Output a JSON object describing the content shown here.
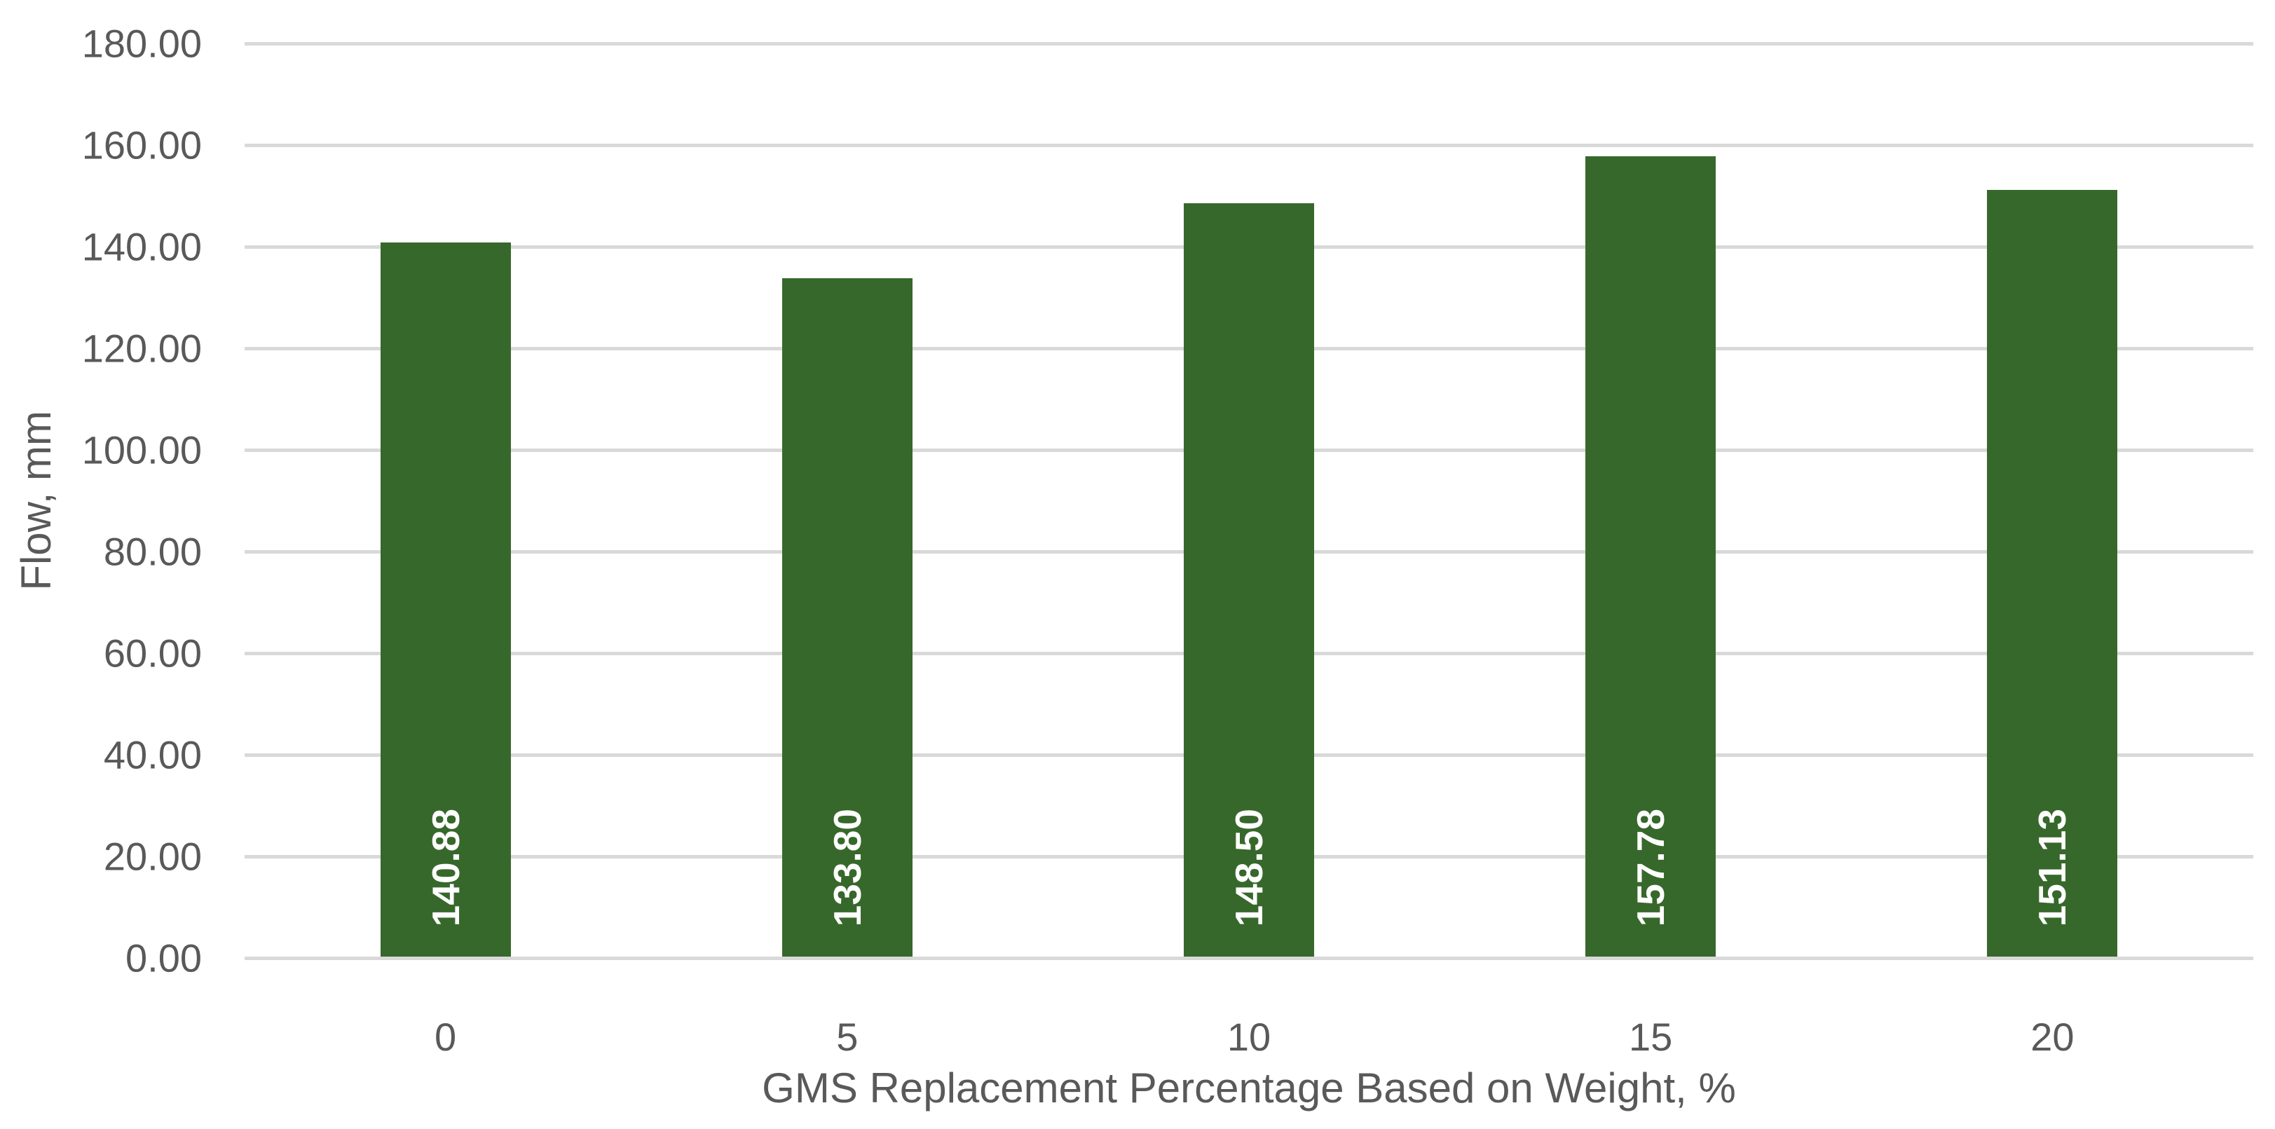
{
  "chart_data": {
    "type": "bar",
    "categories": [
      "0",
      "5",
      "10",
      "15",
      "20"
    ],
    "values": [
      140.88,
      133.8,
      148.5,
      157.78,
      151.13
    ],
    "value_labels": [
      "140.88",
      "133.80",
      "148.50",
      "157.78",
      "151.13"
    ],
    "title": "",
    "xlabel": "GMS Replacement Percentage Based on Weight, %",
    "ylabel": "Flow, mm",
    "ylim": [
      0,
      180
    ],
    "ytick_step": 20,
    "ytick_labels": [
      "0.00",
      "20.00",
      "40.00",
      "60.00",
      "80.00",
      "100.00",
      "120.00",
      "140.00",
      "160.00",
      "180.00"
    ],
    "grid": true,
    "legend": false,
    "colors": {
      "bar_fill": "#37682B",
      "bar_value_label": "#FFFFFF",
      "axis_text": "#595959",
      "gridline": "#D9D9D9",
      "axis_line": "#D9D9D9",
      "background": "#FFFFFF"
    }
  }
}
